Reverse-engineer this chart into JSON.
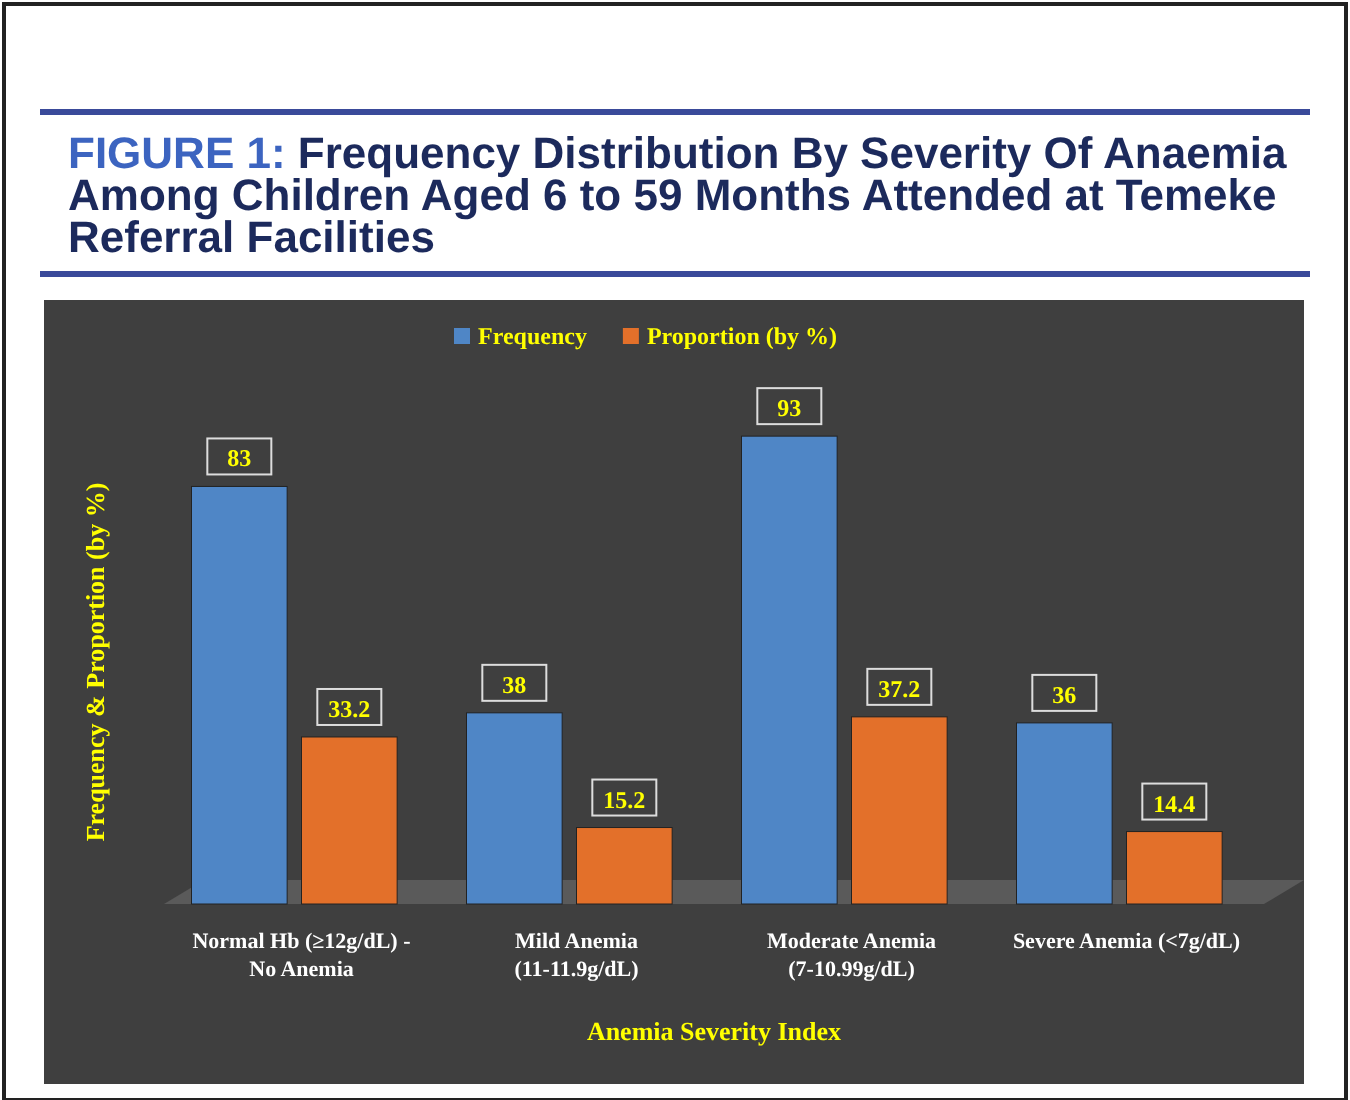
{
  "chart_data": {
    "type": "bar",
    "title": "FIGURE 1: Frequency Distribution By Severity Of Anaemia Among Children Aged 6 to 59 Months Attended at Temeke Referral Facilities",
    "xlabel": "Anemia Severity Index",
    "ylabel": "Frequency & Proportion (by %)",
    "categories": [
      "Normal Hb (≥12g/dL) - No Anemia",
      "Mild Anemia (11-11.9g/dL)",
      "Moderate Anemia (7-10.99g/dL)",
      "Severe Anemia (<7g/dL)"
    ],
    "series": [
      {
        "name": "Frequency",
        "color": "#4f86c6",
        "values": [
          83,
          38,
          93,
          36
        ]
      },
      {
        "name": "Proportion (by %)",
        "color": "#e3702a",
        "values": [
          33.2,
          15.2,
          37.2,
          14.4
        ]
      }
    ],
    "data_labels": true,
    "legend": "top",
    "grid": false
  }
}
